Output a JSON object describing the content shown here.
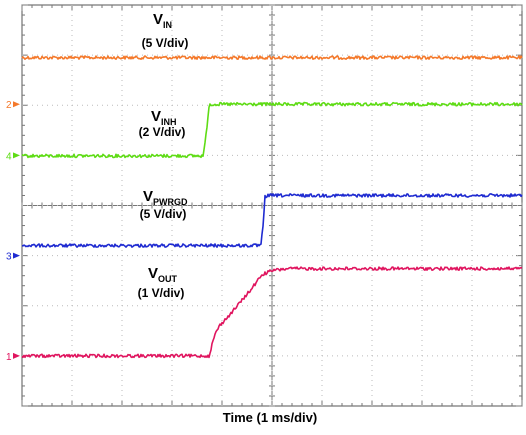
{
  "chart_data": {
    "type": "line",
    "title": "",
    "xlabel": "Time (1 ms/div)",
    "ylabel": "",
    "xlim": [
      0,
      10
    ],
    "divisions_y": 8,
    "grid": true,
    "series": [
      {
        "name": "V",
        "name_sub": "IN",
        "scale": "(5 V/div)",
        "color": "#F4792B",
        "marker_label": "",
        "level_div": 7.0,
        "x": [
          0,
          10
        ],
        "y_div": [
          6.95,
          6.95
        ]
      },
      {
        "name": "V",
        "name_sub": "INH",
        "scale": "(2 V/div)",
        "color": "#5EDC14",
        "marker_label": "4",
        "marker_color": "#5EDC14",
        "level_div": 5.0,
        "x": [
          0,
          3.62,
          3.67,
          3.74,
          3.76,
          10
        ],
        "y_div": [
          4.99,
          4.99,
          5.3,
          5.98,
          6.02,
          6.02
        ]
      },
      {
        "name": "V",
        "name_sub": "PWRGD",
        "scale": "(5 V/div)",
        "color": "#1F2BD1",
        "marker_label": "3",
        "marker_color": "#1F2BD1",
        "level_div": 3.0,
        "x": [
          0,
          4.78,
          4.82,
          4.86,
          4.95,
          10
        ],
        "y_div": [
          3.2,
          3.2,
          3.6,
          4.18,
          4.2,
          4.2
        ]
      },
      {
        "name": "V",
        "name_sub": "OUT",
        "scale": "(1 V/div)",
        "color": "#E0155F",
        "marker_label": "1",
        "marker_color": "#E0155F",
        "level_div": 1.0,
        "x": [
          0,
          3.74,
          3.8,
          3.87,
          3.95,
          4.1,
          4.35,
          4.6,
          4.8,
          5.0,
          5.3,
          10
        ],
        "y_div": [
          1.0,
          1.0,
          1.22,
          1.46,
          1.6,
          1.76,
          2.05,
          2.35,
          2.62,
          2.7,
          2.74,
          2.74
        ]
      }
    ]
  }
}
